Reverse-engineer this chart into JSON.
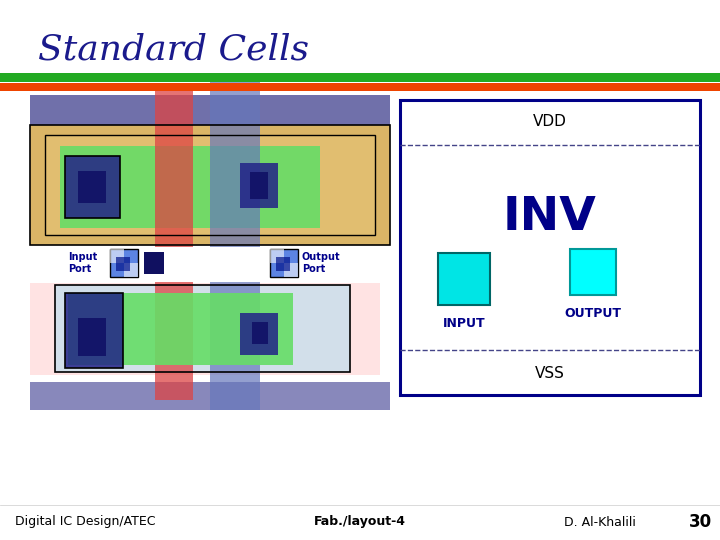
{
  "title": "Standard Cells",
  "title_color": "#1a1a8c",
  "title_fontsize": 26,
  "bg_color": "#FFFFFF",
  "stripe_green": "#22AA22",
  "stripe_orange": "#EE4400",
  "footer_left": "Digital IC Design/ATEC",
  "footer_center": "Fab./layout-4",
  "footer_right": "D. Al-Khalili",
  "footer_page": "30",
  "footer_fontsize": 9,
  "vdd_label": "VDD",
  "vss_label": "VSS",
  "inv_label": "INV",
  "input_label": "INPUT",
  "output_label": "OUTPUT",
  "input_rect_color": "#00E5E5",
  "output_rect_color": "#00FFFF",
  "purple_top": "#7070AA",
  "purple_bot": "#8888BB",
  "tan_color": "#D4A84B",
  "green_color": "#66DD66",
  "dark_blue": "#222288",
  "red_metal": "#DD4444",
  "blue_metal": "#6677BB",
  "pink_bg": "#FFCCCC",
  "lightblue_bg": "#BBDDEE",
  "port_blue": "#3366DD",
  "inv_border": "#000088",
  "note_color": "#00008B"
}
